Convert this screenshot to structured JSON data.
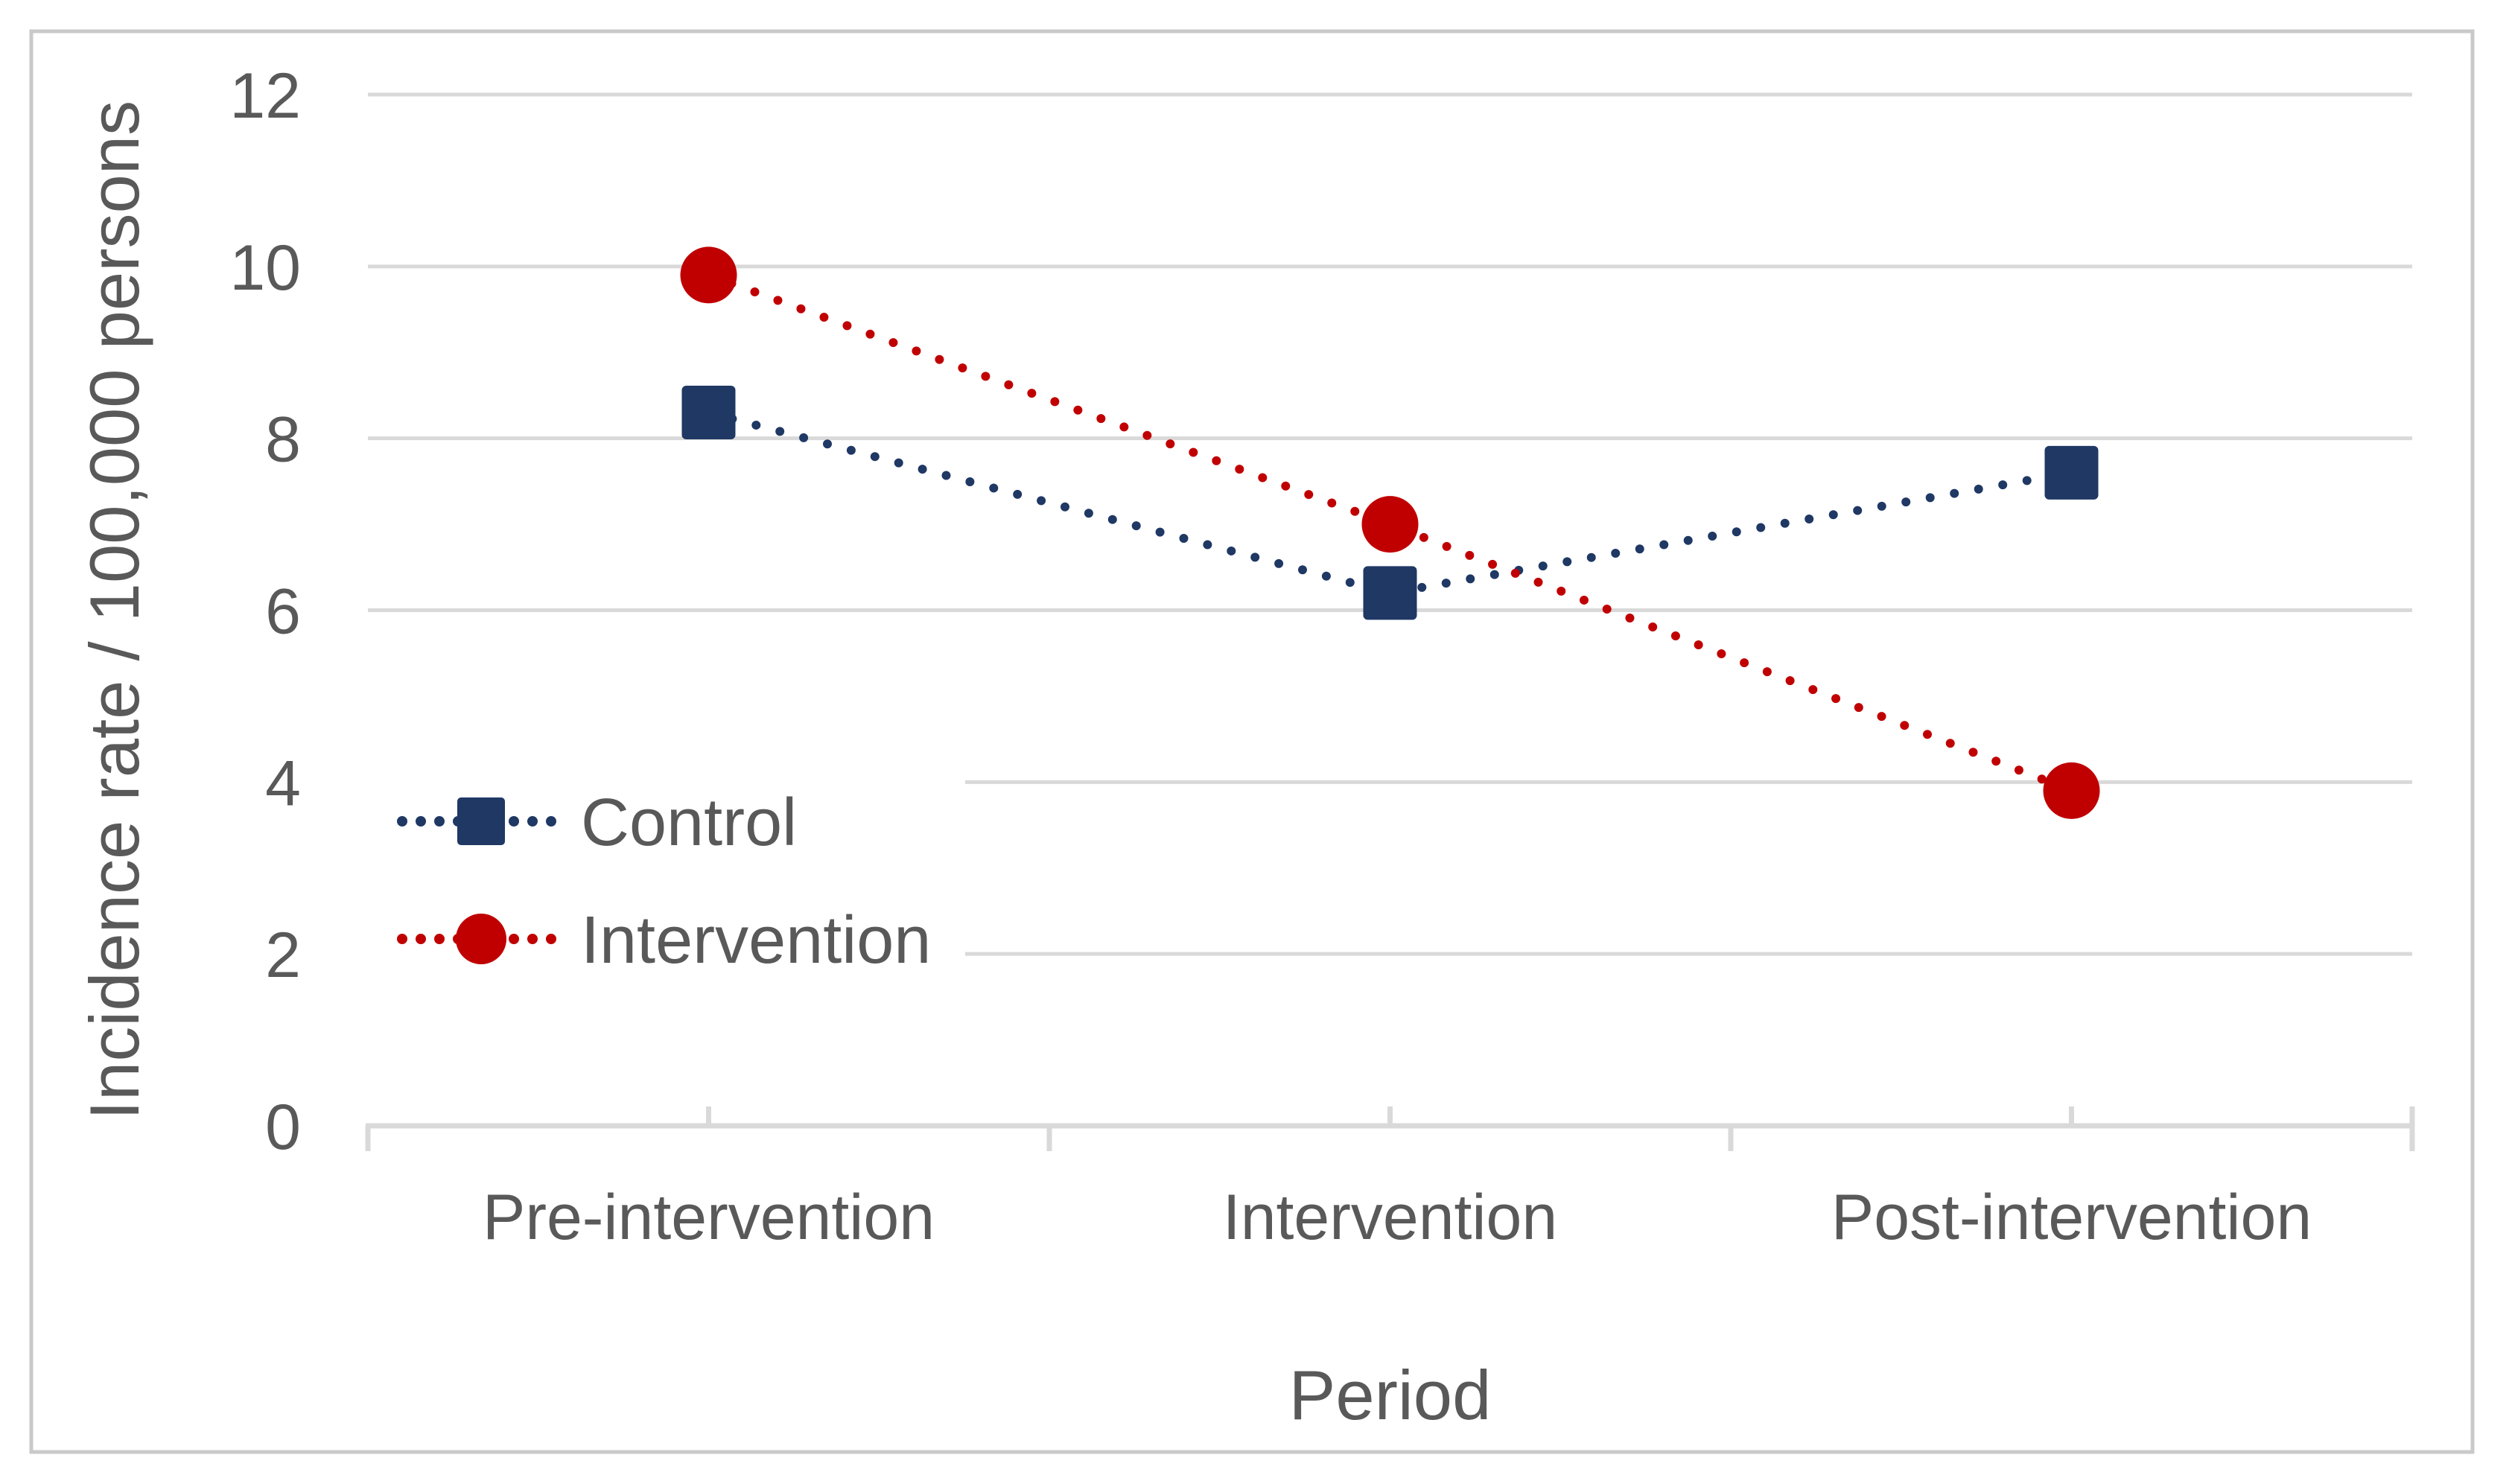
{
  "chart_data": {
    "type": "line",
    "line_style": "dotted",
    "categories": [
      "Pre-intervention",
      "Intervention",
      "Post-intervention"
    ],
    "series": [
      {
        "name": "Control",
        "values": [
          8.3,
          6.2,
          7.6
        ],
        "color": "#1F3864",
        "marker": "square"
      },
      {
        "name": "Intervention",
        "values": [
          9.9,
          7.0,
          3.9
        ],
        "color": "#C00000",
        "marker": "circle"
      }
    ],
    "xlabel": "Period",
    "ylabel": "Incidence rate / 100,000 persons",
    "ylim": [
      0,
      12
    ],
    "yticks": [
      0,
      2,
      4,
      6,
      8,
      10,
      12
    ],
    "grid": "horizontal",
    "legend_position": "inside-left-middle"
  },
  "styles": {
    "control_color": "#1F3864",
    "intervention_color": "#C00000",
    "gridline_color": "#D9D9D9",
    "axis_color": "#D9D9D9",
    "text_color": "#595959",
    "border_color": "#C9C9C9",
    "background": "#FFFFFF"
  }
}
